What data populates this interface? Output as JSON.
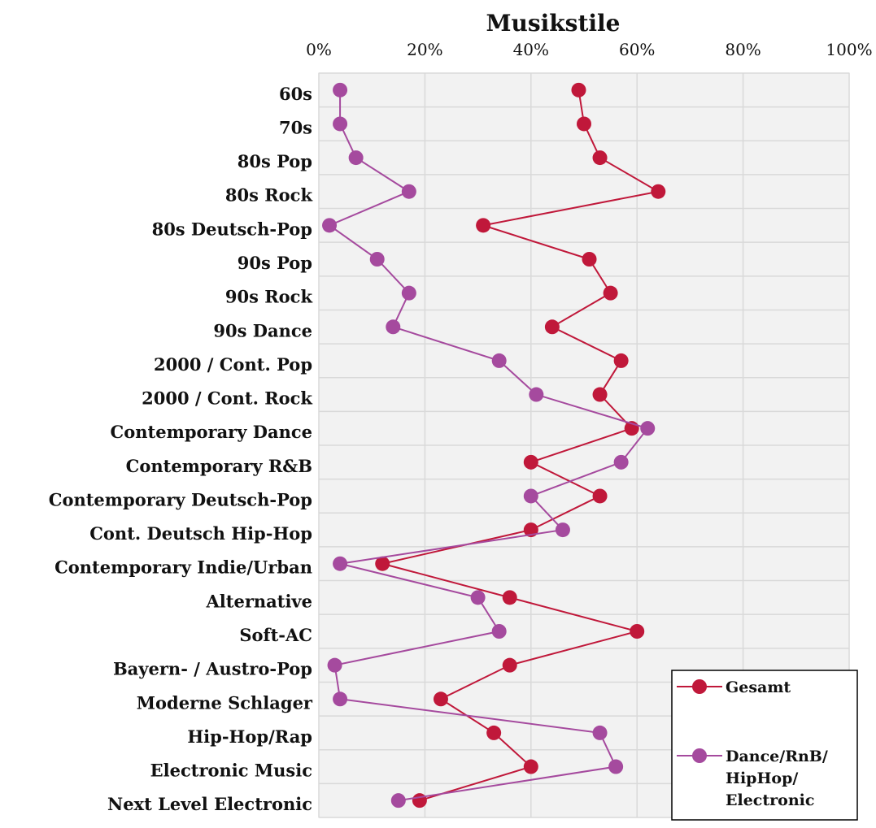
{
  "chart_data": {
    "type": "line",
    "title": "Musikstile",
    "xlim": [
      0,
      100
    ],
    "x_ticks": [
      "0%",
      "20%",
      "40%",
      "60%",
      "80%",
      "100%"
    ],
    "x_axis_position": "top",
    "grid": true,
    "legend_position": "bottom-right",
    "categories": [
      "60s",
      "70s",
      "80s Pop",
      "80s Rock",
      "80s Deutsch-Pop",
      "90s Pop",
      "90s Rock",
      "90s Dance",
      "2000 / Cont. Pop",
      "2000 / Cont. Rock",
      "Contemporary Dance",
      "Contemporary R&B",
      "Contemporary Deutsch-Pop",
      "Cont. Deutsch Hip-Hop",
      "Contemporary Indie/Urban",
      "Alternative",
      "Soft-AC",
      "Bayern- / Austro-Pop",
      "Moderne Schlager",
      "Hip-Hop/Rap",
      "Electronic Music",
      "Next Level Electronic"
    ],
    "series": [
      {
        "name": "Gesamt",
        "color": "#c0183a",
        "values": [
          49,
          50,
          53,
          64,
          31,
          51,
          55,
          44,
          57,
          53,
          59,
          40,
          53,
          40,
          12,
          36,
          60,
          36,
          23,
          33,
          40,
          19
        ]
      },
      {
        "name": "Dance/RnB/ HipHop/ Electronic",
        "legend_lines": [
          "Dance/RnB/",
          "HipHop/",
          "Electronic"
        ],
        "color": "#a54a9e",
        "values": [
          4,
          4,
          7,
          17,
          2,
          11,
          17,
          14,
          34,
          41,
          62,
          57,
          40,
          46,
          4,
          30,
          34,
          3,
          4,
          53,
          56,
          15
        ]
      }
    ]
  },
  "colors": {
    "plot_background": "#f2f2f2",
    "gridline": "#d9d9d9"
  }
}
